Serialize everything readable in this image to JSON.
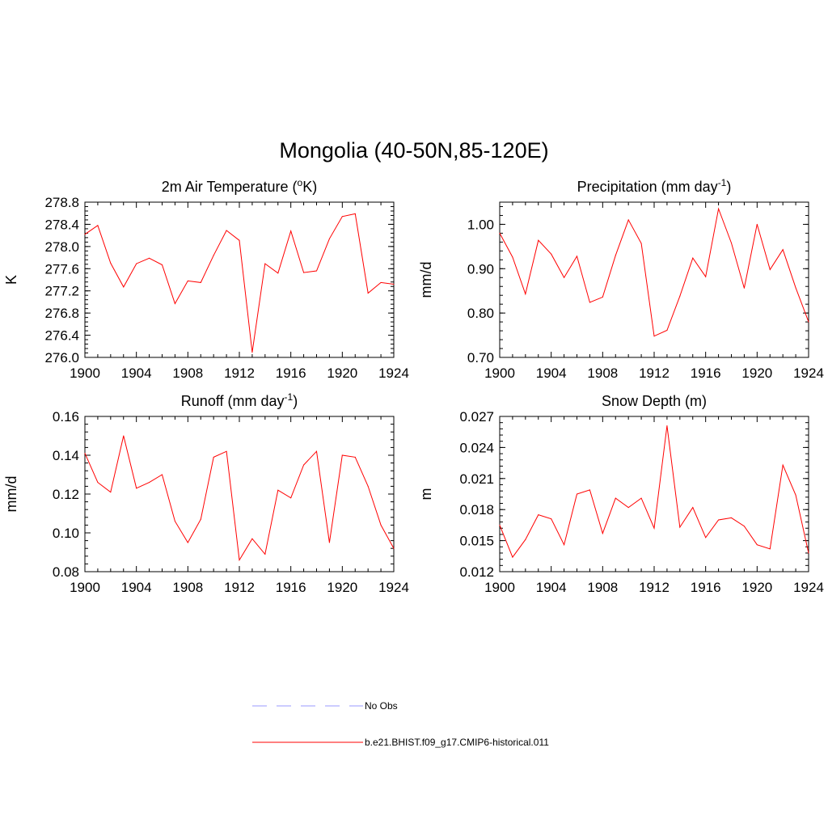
{
  "figure": {
    "title": "Mongolia (40-50N,85-120E)"
  },
  "legend": {
    "items": [
      {
        "label": "No Obs",
        "color": "#9999ff",
        "dash": true
      },
      {
        "label": "b.e21.BHIST.f09_g17.CMIP6-historical.011",
        "color": "#ff0000",
        "dash": false
      }
    ]
  },
  "chart_data": [
    {
      "type": "line",
      "title_main": "2m Air Temperature (",
      "title_sup_prefix": "o",
      "title_mid": "K",
      "title_end": ")",
      "xlabel": "",
      "ylabel": "K",
      "xlim": [
        1900,
        1924
      ],
      "ylim": [
        276.0,
        278.8
      ],
      "xticks": [
        1900,
        1904,
        1908,
        1912,
        1916,
        1920,
        1924
      ],
      "yticks": [
        "278.8",
        "278.4",
        "278.0",
        "277.6",
        "277.2",
        "276.8",
        "276.4",
        "276.0"
      ],
      "ytick_values": [
        278.8,
        278.4,
        278.0,
        277.6,
        277.2,
        276.8,
        276.4,
        276.0
      ],
      "series": [
        {
          "color": "#ff0000",
          "x": [
            1900,
            1901,
            1902,
            1903,
            1904,
            1905,
            1906,
            1907,
            1908,
            1909,
            1910,
            1911,
            1912,
            1913,
            1914,
            1915,
            1916,
            1917,
            1918,
            1919,
            1920,
            1921,
            1922,
            1923,
            1924
          ],
          "values": [
            278.22,
            278.38,
            277.7,
            277.27,
            277.69,
            277.79,
            277.67,
            276.97,
            277.38,
            277.35,
            277.84,
            278.29,
            278.11,
            276.09,
            277.69,
            277.52,
            278.28,
            277.53,
            277.56,
            278.14,
            278.54,
            278.59,
            277.16,
            277.35,
            277.32
          ]
        }
      ]
    },
    {
      "type": "line",
      "title_main": "Precipitation (mm day",
      "title_sup": "-1",
      "title_end": ")",
      "xlabel": "",
      "ylabel": "mm/d",
      "xlim": [
        1900,
        1924
      ],
      "ylim": [
        0.7,
        1.05
      ],
      "xticks": [
        1900,
        1904,
        1908,
        1912,
        1916,
        1920,
        1924
      ],
      "yticks": [
        "1.00",
        "0.90",
        "0.80",
        "0.70"
      ],
      "ytick_values": [
        1.0,
        0.9,
        0.8,
        0.7
      ],
      "series": [
        {
          "color": "#ff0000",
          "x": [
            1900,
            1901,
            1902,
            1903,
            1904,
            1905,
            1906,
            1907,
            1908,
            1909,
            1910,
            1911,
            1912,
            1913,
            1914,
            1915,
            1916,
            1917,
            1918,
            1919,
            1920,
            1921,
            1922,
            1923,
            1924
          ],
          "values": [
            0.98,
            0.926,
            0.843,
            0.964,
            0.933,
            0.88,
            0.928,
            0.824,
            0.836,
            0.93,
            1.01,
            0.957,
            0.748,
            0.761,
            0.838,
            0.924,
            0.882,
            1.035,
            0.958,
            0.856,
            1.0,
            0.898,
            0.943,
            0.857,
            0.78
          ]
        }
      ]
    },
    {
      "type": "line",
      "title_main": "Runoff (mm day",
      "title_sup": "-1",
      "title_end": ")",
      "xlabel": "",
      "ylabel": "mm/d",
      "xlim": [
        1900,
        1924
      ],
      "ylim": [
        0.08,
        0.16
      ],
      "xticks": [
        1900,
        1904,
        1908,
        1912,
        1916,
        1920,
        1924
      ],
      "yticks": [
        "0.16",
        "0.14",
        "0.12",
        "0.10",
        "0.08"
      ],
      "ytick_values": [
        0.16,
        0.14,
        0.12,
        0.1,
        0.08
      ],
      "series": [
        {
          "color": "#ff0000",
          "x": [
            1900,
            1901,
            1902,
            1903,
            1904,
            1905,
            1906,
            1907,
            1908,
            1909,
            1910,
            1911,
            1912,
            1913,
            1914,
            1915,
            1916,
            1917,
            1918,
            1919,
            1920,
            1921,
            1922,
            1923,
            1924
          ],
          "values": [
            0.141,
            0.126,
            0.121,
            0.15,
            0.123,
            0.126,
            0.13,
            0.106,
            0.095,
            0.107,
            0.139,
            0.142,
            0.086,
            0.097,
            0.089,
            0.122,
            0.118,
            0.135,
            0.142,
            0.095,
            0.14,
            0.139,
            0.124,
            0.104,
            0.092
          ]
        }
      ]
    },
    {
      "type": "line",
      "title_main": "Snow Depth (m)",
      "xlabel": "",
      "ylabel": "m",
      "xlim": [
        1900,
        1924
      ],
      "ylim": [
        0.012,
        0.027
      ],
      "xticks": [
        1900,
        1904,
        1908,
        1912,
        1916,
        1920,
        1924
      ],
      "yticks": [
        "0.027",
        "0.024",
        "0.021",
        "0.018",
        "0.015",
        "0.012"
      ],
      "ytick_values": [
        0.027,
        0.024,
        0.021,
        0.018,
        0.015,
        0.012
      ],
      "series": [
        {
          "color": "#ff0000",
          "x": [
            1900,
            1901,
            1902,
            1903,
            1904,
            1905,
            1906,
            1907,
            1908,
            1909,
            1910,
            1911,
            1912,
            1913,
            1914,
            1915,
            1916,
            1917,
            1918,
            1919,
            1920,
            1921,
            1922,
            1923,
            1924
          ],
          "values": [
            0.0165,
            0.0134,
            0.0151,
            0.0175,
            0.0171,
            0.0146,
            0.0195,
            0.0199,
            0.0157,
            0.0191,
            0.0182,
            0.0191,
            0.0162,
            0.0261,
            0.0163,
            0.0182,
            0.0153,
            0.017,
            0.0172,
            0.0164,
            0.0146,
            0.0142,
            0.0223,
            0.0194,
            0.0138
          ]
        }
      ]
    }
  ]
}
